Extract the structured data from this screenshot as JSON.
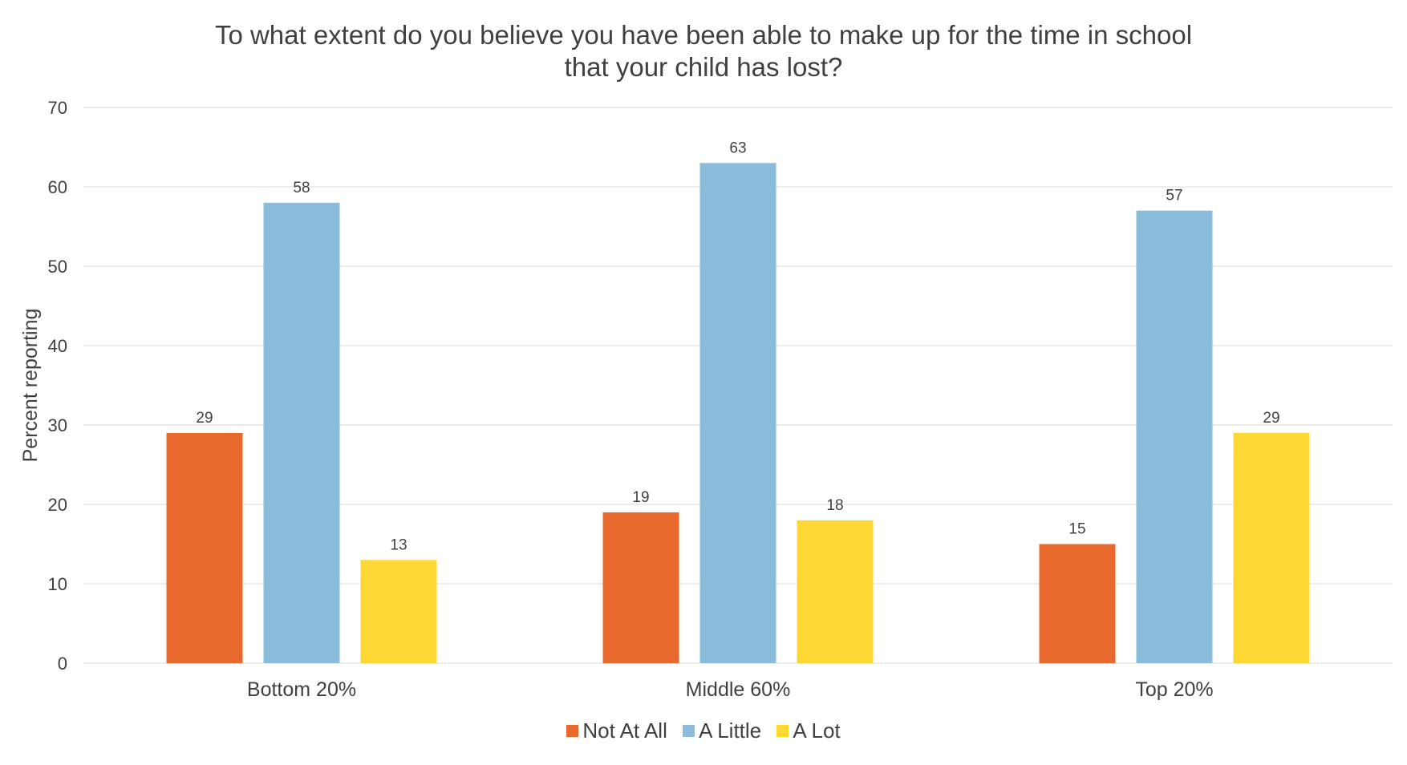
{
  "chart_data": {
    "type": "bar",
    "title_lines": [
      "To what extent do you believe you have been able to make up for the time in school",
      "that your child has lost?"
    ],
    "xlabel": "",
    "ylabel": "Percent reporting",
    "ylim": [
      0,
      70
    ],
    "yticks": [
      0,
      10,
      20,
      30,
      40,
      50,
      60,
      70
    ],
    "categories": [
      "Bottom 20%",
      "Middle 60%",
      "Top 20%"
    ],
    "series": [
      {
        "name": "Not At All",
        "color": "#E8692D",
        "values": [
          29,
          19,
          15
        ]
      },
      {
        "name": "A Little",
        "color": "#8BBCDC",
        "values": [
          58,
          63,
          57
        ]
      },
      {
        "name": "A Lot",
        "color": "#FDD835",
        "values": [
          13,
          18,
          29
        ]
      }
    ],
    "grid": true,
    "legend_position": "bottom"
  }
}
